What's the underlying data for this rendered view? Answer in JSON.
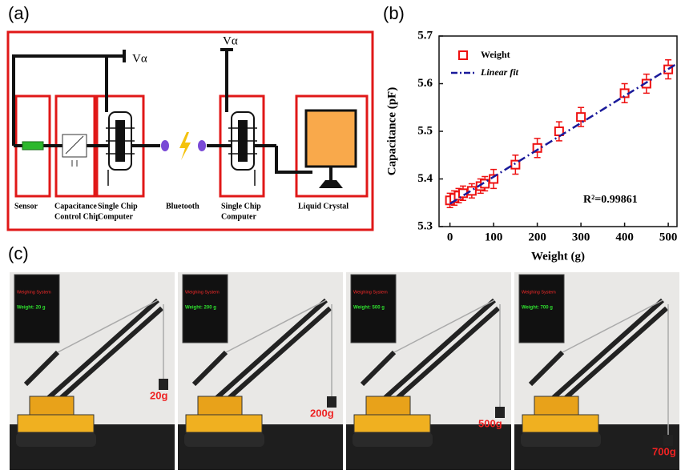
{
  "panels": {
    "a": "(a)",
    "b": "(b)",
    "c": "(c)"
  },
  "diagram": {
    "v_left": "Vα",
    "v_right": "Vα",
    "labels": [
      [
        "Sensor"
      ],
      [
        "Capacitance",
        "Control Chip"
      ],
      [
        "Single Chip",
        "Computer"
      ],
      [
        "Bluetooth"
      ],
      [
        "Single Chip",
        "Computer"
      ],
      [
        "Liquid Crystal"
      ]
    ]
  },
  "photos": [
    {
      "screen_title": "Weighing System",
      "screen_weight": "Weight: 20 g",
      "label": "20g"
    },
    {
      "screen_title": "Weighing System",
      "screen_weight": "Weight: 200 g",
      "label": "200g"
    },
    {
      "screen_title": "Weighing System",
      "screen_weight": "Weight: 500 g",
      "label": "500g"
    },
    {
      "screen_title": "Weighing System",
      "screen_weight": "Weight: 700 g",
      "label": "700g"
    }
  ],
  "chart_data": {
    "type": "scatter",
    "xlabel": "Weight (g)",
    "ylabel": "Capacitance (pF)",
    "annotation": "R²=0.99861",
    "xlim": [
      -25,
      520
    ],
    "ylim": [
      5.3,
      5.7
    ],
    "xticks": [
      0,
      100,
      200,
      300,
      400,
      500
    ],
    "yticks": [
      5.3,
      5.4,
      5.5,
      5.6,
      5.7
    ],
    "legend": "upper left",
    "series": [
      {
        "name": "Weight",
        "color": "#ee1111",
        "x": [
          0,
          10,
          20,
          30,
          50,
          70,
          80,
          100,
          150,
          200,
          250,
          300,
          400,
          450,
          500
        ],
        "values": [
          5.355,
          5.36,
          5.365,
          5.37,
          5.375,
          5.385,
          5.39,
          5.4,
          5.43,
          5.465,
          5.5,
          5.53,
          5.58,
          5.6,
          5.63
        ],
        "errors": [
          0.015,
          0.015,
          0.015,
          0.015,
          0.015,
          0.015,
          0.015,
          0.02,
          0.02,
          0.02,
          0.02,
          0.02,
          0.02,
          0.02,
          0.02
        ]
      },
      {
        "name": "Linear fit",
        "color": "#1a1a9a",
        "dashed": true,
        "x": [
          0,
          520
        ],
        "values": [
          5.348,
          5.642
        ]
      }
    ]
  }
}
